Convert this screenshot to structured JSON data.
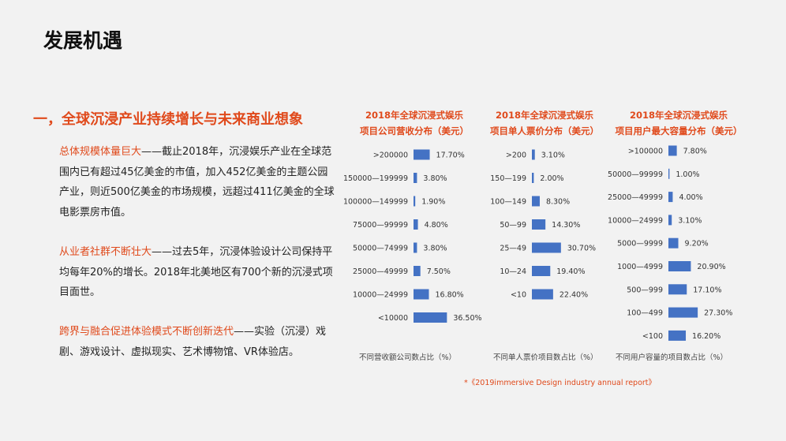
{
  "page": {
    "title": "发展机遇",
    "section_heading": "一，全球沉浸产业持续增长与未来商业想象",
    "paragraphs": [
      {
        "highlight": "总体规模体量巨大",
        "text": "——截止2018年，沉浸娱乐产业在全球范围内已有超过45亿美金的市值，加入452亿美金的主题公园产业，则近500亿美金的市场规模，远超过411亿美金的全球电影票房市值。"
      },
      {
        "highlight": "从业者社群不断壮大",
        "text": "——过去5年，沉浸体验设计公司保持平均每年20%的增长。2018年北美地区有700个新的沉浸式项目面世。"
      },
      {
        "highlight": "跨界与融合促进体验模式不断创新迭代",
        "text": "——实验（沉浸）戏剧、游戏设计、虚拟现实、艺术博物馆、VR体验店。"
      }
    ],
    "source_note": "*《2019immersive Design industry annual report》",
    "bar_color": "#4472c4"
  },
  "chart_data": [
    {
      "type": "bar",
      "orientation": "horizontal",
      "title_lines": [
        "2018年全球沉浸式娱乐",
        "项目公司营收分布（美元）"
      ],
      "caption": "不同营收额公司数占比（%）",
      "categories": [
        ">200000",
        "150000—199999",
        "100000—149999",
        "75000—99999",
        "50000—74999",
        "25000—49999",
        "10000—24999",
        "<10000"
      ],
      "values": [
        17.7,
        3.8,
        1.9,
        4.8,
        3.8,
        7.5,
        16.8,
        36.5
      ],
      "labels": [
        "17.70%",
        "3.80%",
        "1.90%",
        "4.80%",
        "3.80%",
        "7.50%",
        "16.80%",
        "36.50%"
      ]
    },
    {
      "type": "bar",
      "orientation": "horizontal",
      "title_lines": [
        "2018年全球沉浸式娱乐",
        "项目单人票价分布（美元）"
      ],
      "caption": "不同单人票价项目数占比（%）",
      "categories": [
        ">200",
        "150—199",
        "100—149",
        "50—99",
        "25—49",
        "10—24",
        "<10"
      ],
      "values": [
        3.1,
        2.0,
        8.3,
        14.3,
        30.7,
        19.4,
        22.4
      ],
      "labels": [
        "3.10%",
        "2.00%",
        "8.30%",
        "14.30%",
        "30.70%",
        "19.40%",
        "22.40%"
      ]
    },
    {
      "type": "bar",
      "orientation": "horizontal",
      "title_lines": [
        "2018年全球沉浸式娱乐",
        "项目用户最大容量分布（美元）"
      ],
      "caption": "不同用户容量的项目数占比（%）",
      "categories": [
        ">100000",
        "50000—99999",
        "25000—49999",
        "10000—24999",
        "5000—9999",
        "1000—4999",
        "500—999",
        "100—499",
        "<100"
      ],
      "values": [
        7.8,
        1.0,
        4.0,
        3.1,
        9.2,
        20.9,
        17.1,
        27.3,
        16.2
      ],
      "labels": [
        "7.80%",
        "1.00%",
        "4.00%",
        "3.10%",
        "9.20%",
        "20.90%",
        "17.10%",
        "27.30%",
        "16.20%"
      ]
    }
  ]
}
